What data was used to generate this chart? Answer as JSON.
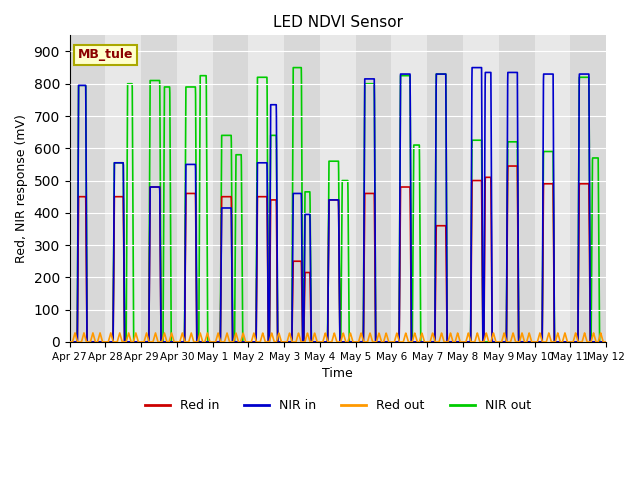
{
  "title": "LED NDVI Sensor",
  "xlabel": "Time",
  "ylabel": "Red, NIR response (mV)",
  "ylim": [
    0,
    950
  ],
  "yticks": [
    0,
    100,
    200,
    300,
    400,
    500,
    600,
    700,
    800,
    900
  ],
  "annotation": "MB_tule",
  "legend_entries": [
    "Red in",
    "NIR in",
    "Red out",
    "NIR out"
  ],
  "colors": {
    "red_in": "#cc0000",
    "nir_in": "#0000cc",
    "red_out": "#ff9900",
    "nir_out": "#00cc00"
  },
  "x_tick_labels": [
    "Apr 27",
    "Apr 28",
    "Apr 29",
    "Apr 30",
    "May 1",
    "May 2",
    "May 3",
    "May 4",
    "May 5",
    "May 6",
    "May 7",
    "May 8",
    "May 9",
    "May 10",
    "May 11",
    "May 12"
  ],
  "background_color": "#ffffff",
  "plot_bg": "#e8e8e8",
  "grid_color": "#ffffff",
  "stripe_color": "#d8d8d8"
}
